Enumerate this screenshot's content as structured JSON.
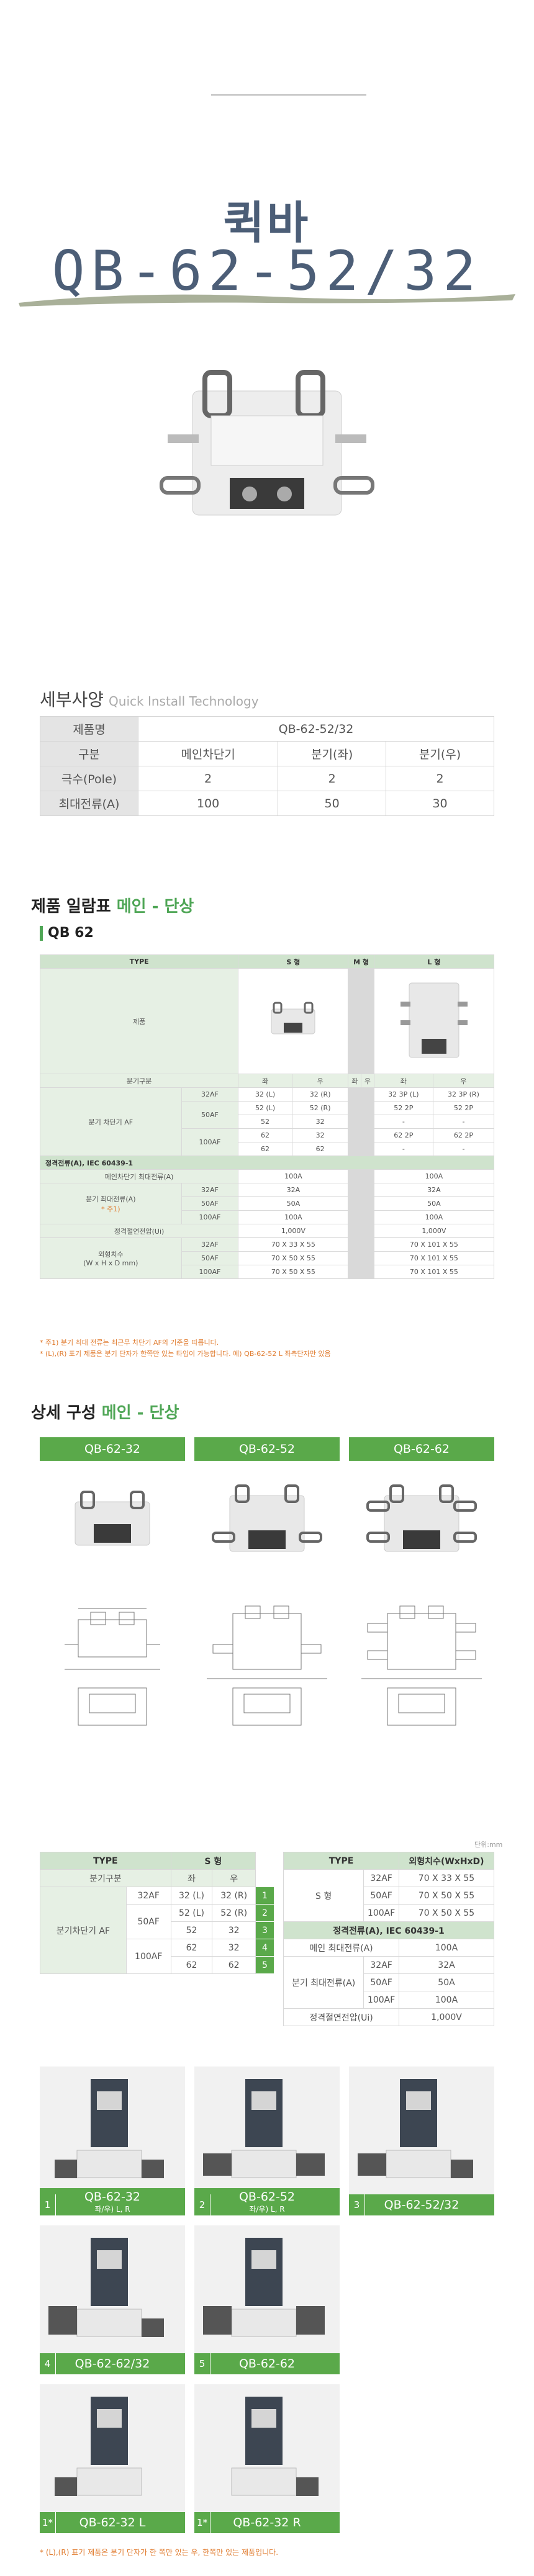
{
  "hero": {
    "title": "퀵바",
    "model": "QB-62-52/32"
  },
  "spec": {
    "heading": "세부사양",
    "subheading": "Quick Install Technology",
    "rows": [
      {
        "label": "제품명",
        "values": [
          "QB-62-52/32"
        ]
      },
      {
        "label": "구분",
        "values": [
          "메인차단기",
          "분기(좌)",
          "분기(우)"
        ]
      },
      {
        "label": "극수(Pole)",
        "values": [
          "2",
          "2",
          "2"
        ]
      },
      {
        "label": "최대전류(A)",
        "values": [
          "100",
          "50",
          "30"
        ]
      }
    ]
  },
  "list_section": {
    "title": "제품 일람표",
    "title_accent": "메인 - 단상",
    "group_label": "QB 62",
    "type_label": "TYPE",
    "s_type": "S 형",
    "m_type": "M 형",
    "l_type": "L 형",
    "product_label": "제품",
    "branch_label": "분기구분",
    "left": "좌",
    "right": "우",
    "branch_breaker_af": "분기 차단기 AF",
    "af32": "32AF",
    "af50": "50AF",
    "af100": "100AF",
    "rows": {
      "r32": [
        "32 (L)",
        "32 (R)",
        "32 3P (L)",
        "32 3P (R)"
      ],
      "r50a": [
        "52 (L)",
        "52 (R)",
        "52 2P",
        "52 2P"
      ],
      "r50b": [
        "52",
        "32",
        "-",
        "-"
      ],
      "r100a": [
        "62",
        "32",
        "62 2P",
        "62 2P"
      ],
      "r100b": [
        "62",
        "62",
        "-",
        "-"
      ]
    },
    "rated_current": "정격전류(A), IEC 60439-1",
    "main_max": "메인차단기 최대전류(A)",
    "main_max_s": "100A",
    "main_max_l": "100A",
    "branch_max": "분기 최대전류(A)",
    "branch_max_note": "* 주1)",
    "bm32": [
      "32A",
      "32A"
    ],
    "bm50": [
      "50A",
      "50A"
    ],
    "bm100": [
      "100A",
      "100A"
    ],
    "rated_voltage": "정격절연전압(Ui)",
    "rv": [
      "1,000V",
      "1,000V"
    ],
    "dims": "외형치수",
    "dims_unit": "(W x H x D mm)",
    "d32": [
      "70 X 33 X 55",
      "70 X 101 X 55"
    ],
    "d50": [
      "70 X 50 X 55",
      "70 X 101 X 55"
    ],
    "d100": [
      "70 X 50 X 55",
      "70 X 101 X 55"
    ],
    "notes": [
      "* 주1) 분기 최대 전류는 최근무 차단기 AF의 기준을 따릅니다.",
      "* (L),(R) 표기 제품은 분기 단자가 한쪽만 있는 타입이 가능합니다. 예) QB-62-52 L 좌측단자만 있음"
    ]
  },
  "detail_section": {
    "title": "상세 구성",
    "title_accent": "메인 - 단상",
    "columns": [
      "QB-62-32",
      "QB-62-52",
      "QB-62-62"
    ],
    "unit": "단위:mm",
    "t1": {
      "type": "TYPE",
      "s": "S 형",
      "branch": "분기구분",
      "left": "좌",
      "right": "우",
      "af": "분기차단기 AF",
      "a32": "32AF",
      "a50": "50AF",
      "a100": "100AF",
      "rows": [
        [
          "32 (L)",
          "32 (R)",
          "1"
        ],
        [
          "52 (L)",
          "52 (R)",
          "2"
        ],
        [
          "52",
          "32",
          "3"
        ],
        [
          "62",
          "32",
          "4"
        ],
        [
          "62",
          "62",
          "5"
        ]
      ]
    },
    "t2": {
      "type": "TYPE",
      "dim": "외형치수(WxHxD)",
      "s": "S 형",
      "d": [
        [
          "32AF",
          "70 X 33 X 55"
        ],
        [
          "50AF",
          "70 X 50 X 55"
        ],
        [
          "100AF",
          "70 X 50 X 55"
        ]
      ],
      "rated": "정격전류(A), IEC 60439-1",
      "main": "메인 최대전류(A)",
      "main_v": "100A",
      "branch": "분기 최대전류(A)",
      "b": [
        [
          "32AF",
          "32A"
        ],
        [
          "50AF",
          "50A"
        ],
        [
          "100AF",
          "100A"
        ]
      ],
      "rv": "정격절연전압(Ui)",
      "rv_v": "1,000V"
    }
  },
  "gallery": [
    {
      "num": "1",
      "name": "QB-62-32",
      "sub": "좌/우) L, R"
    },
    {
      "num": "2",
      "name": "QB-62-52",
      "sub": "좌/우) L, R"
    },
    {
      "num": "3",
      "name": "QB-62-52/32",
      "sub": ""
    },
    {
      "num": "4",
      "name": "QB-62-62/32",
      "sub": ""
    },
    {
      "num": "5",
      "name": "QB-62-62",
      "sub": ""
    },
    {
      "num": "1*",
      "name": "QB-62-32 L",
      "sub": ""
    },
    {
      "num": "1*",
      "name": "QB-62-32 R",
      "sub": ""
    }
  ],
  "footnote": "* (L),(R) 표기 제품은 분기 단자가 한 쪽만 있는 우, 한쪽만 있는 제품입니다.",
  "colors": {
    "accent": "#5aa94a",
    "title": "#4c5e77",
    "note": "#e07b2e"
  }
}
